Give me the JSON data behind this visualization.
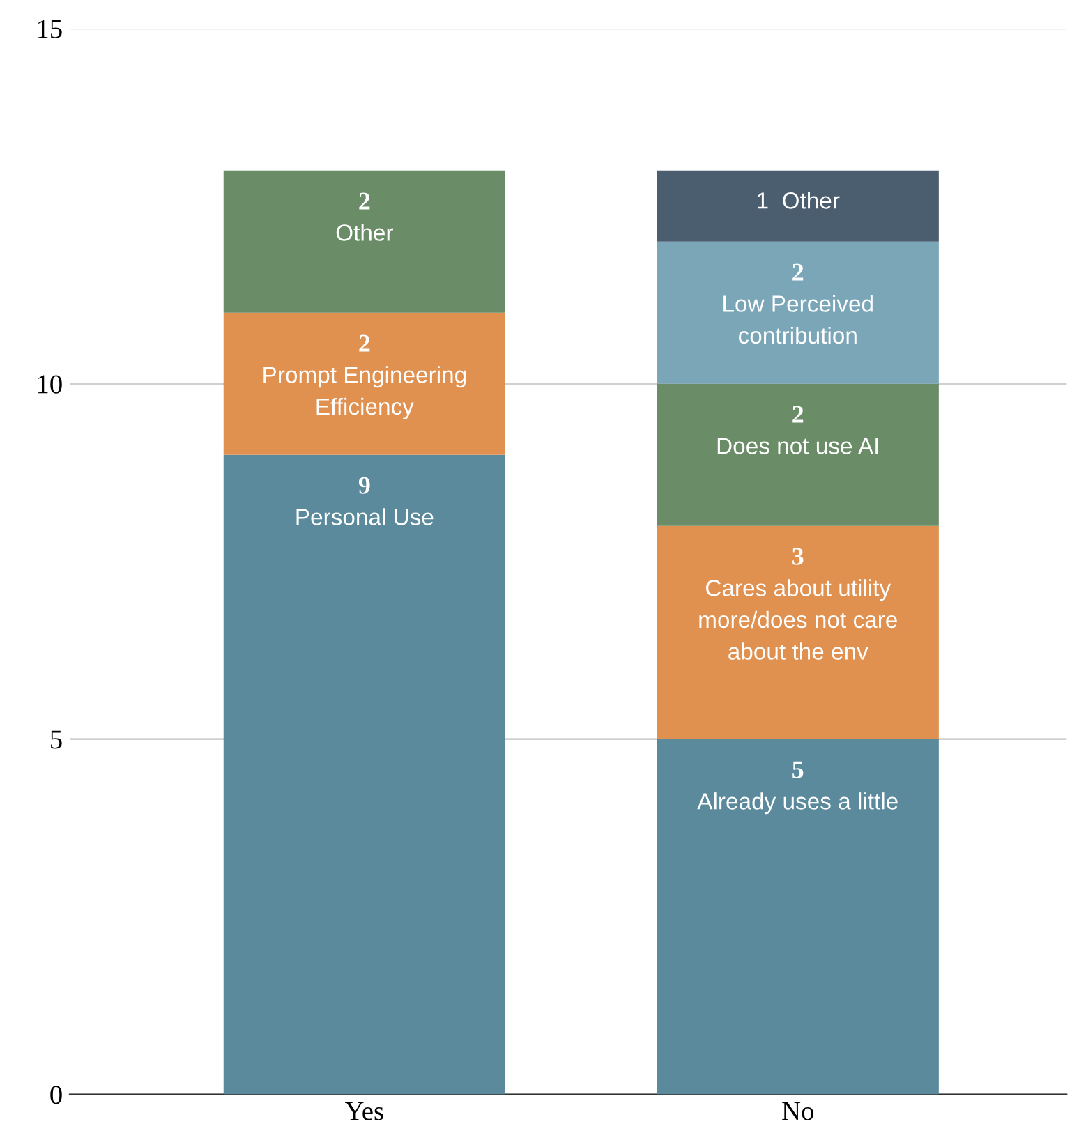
{
  "chart_data": {
    "type": "bar",
    "stacked": true,
    "categories": [
      "Yes",
      "No"
    ],
    "series": [
      {
        "color": "#5a8a9c",
        "values": [
          9,
          5
        ],
        "value_labels": [
          "9\nPersonal Use",
          "5\nAlready uses a little"
        ]
      },
      {
        "color": "#e0904f",
        "values": [
          2,
          3
        ],
        "value_labels": [
          "2\nPrompt Engineering\nEfficiency",
          "3\nCares about utility\nmore/does not care\nabout the env"
        ]
      },
      {
        "color": "#6a8c66",
        "values": [
          2,
          2
        ],
        "value_labels": [
          "2\nOther",
          "2\nDoes not use AI"
        ]
      },
      {
        "color": "#7aa6b8",
        "values": [
          null,
          2
        ],
        "value_labels": [
          null,
          "2\nLow Perceived\ncontribution"
        ]
      },
      {
        "color": "#4a5e70",
        "values": [
          null,
          1
        ],
        "value_labels": [
          null,
          "1  Other"
        ]
      }
    ],
    "ylim": [
      0,
      15
    ],
    "yticks": [
      0,
      5,
      10,
      15
    ],
    "grid": "y"
  }
}
